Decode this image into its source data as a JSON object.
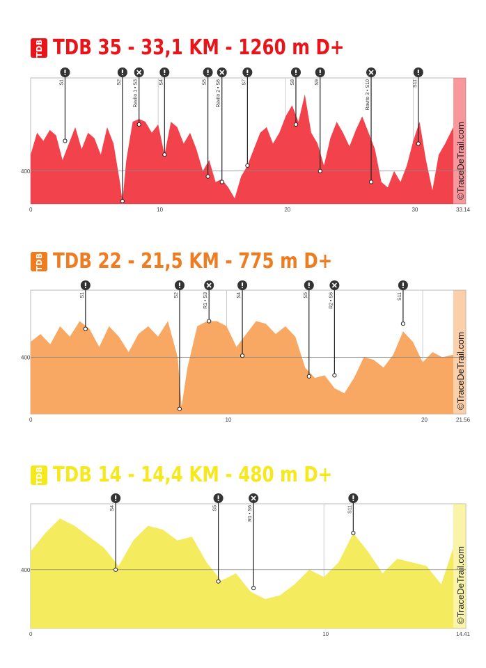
{
  "charts": [
    {
      "title": "TDB 35 - 33,1 KM - 1260 m D+",
      "badge": "TDB",
      "color": "#e8141a",
      "fill": "#f2434c",
      "watermark": "©TraceDeTrail.com",
      "axis_y_label": "400",
      "end_label": "33.14",
      "x_ticks": [
        "0",
        "10",
        "20",
        "30"
      ],
      "markers": [
        {
          "label": "S1",
          "icon": "exclamation-icon"
        },
        {
          "label": "S2",
          "icon": "exclamation-icon"
        },
        {
          "label": "Ravito 1 • S3",
          "icon": "utensils-icon"
        },
        {
          "label": "S4",
          "icon": "exclamation-icon"
        },
        {
          "label": "S5",
          "icon": "exclamation-icon"
        },
        {
          "label": "Ravito 2 • S6",
          "icon": "utensils-icon"
        },
        {
          "label": "S7",
          "icon": "exclamation-icon"
        },
        {
          "label": "S8",
          "icon": "exclamation-icon"
        },
        {
          "label": "S9",
          "icon": "exclamation-icon"
        },
        {
          "label": "Ravito 3 • S10",
          "icon": "utensils-icon"
        },
        {
          "label": "S11",
          "icon": "exclamation-icon"
        }
      ]
    },
    {
      "title": "TDB 22 - 21,5 KM - 775 m D+",
      "badge": "TDB",
      "color": "#ee7d22",
      "fill": "#f8a862",
      "watermark": "©TraceDeTrail.com",
      "axis_y_label": "400",
      "end_label": "21.56",
      "x_ticks": [
        "0",
        "10",
        "20"
      ],
      "markers": [
        {
          "label": "S1",
          "icon": "exclamation-icon"
        },
        {
          "label": "S2",
          "icon": "exclamation-icon"
        },
        {
          "label": "R1 • S3",
          "icon": "utensils-icon"
        },
        {
          "label": "S4",
          "icon": "exclamation-icon"
        },
        {
          "label": "S5",
          "icon": "exclamation-icon"
        },
        {
          "label": "R2 • S6",
          "icon": "utensils-icon"
        },
        {
          "label": "S11",
          "icon": "exclamation-icon"
        }
      ]
    },
    {
      "title": "TDB 14 - 14,4 KM - 480 m D+",
      "badge": "TDB",
      "color": "#f5e81c",
      "fill": "#f4eb5e",
      "watermark": "©TraceDeTrail.com",
      "axis_y_label": "400",
      "end_label": "14.41",
      "x_ticks": [
        "0",
        "10"
      ],
      "markers": [
        {
          "label": "S4",
          "icon": "exclamation-icon"
        },
        {
          "label": "S5",
          "icon": "exclamation-icon"
        },
        {
          "label": "R1 • S6",
          "icon": "utensils-icon"
        },
        {
          "label": "S11",
          "icon": "exclamation-icon"
        }
      ]
    }
  ],
  "chart_data": [
    {
      "type": "area",
      "title": "TDB 35 - 33,1 KM - 1260 m D+",
      "xlim": [
        0,
        33.14
      ],
      "x_unit": "km",
      "y_reference": 400,
      "markers_km": [
        2.7,
        7.2,
        8.5,
        10.5,
        13.9,
        15.0,
        17.0,
        20.8,
        22.7,
        26.7,
        30.4
      ],
      "profile": {
        "x": [
          0,
          0.5,
          1,
          1.5,
          2,
          2.5,
          3,
          3.5,
          4,
          4.5,
          5,
          5.5,
          6,
          6.5,
          7,
          7.2,
          7.5,
          8,
          8.5,
          9,
          9.5,
          10,
          10.5,
          11,
          11.5,
          12,
          12.5,
          13,
          13.5,
          14,
          14.5,
          15,
          15.5,
          16,
          16.5,
          17,
          17.5,
          18,
          18.5,
          19,
          19.5,
          20,
          20.5,
          21,
          21.5,
          22,
          22.5,
          23,
          23.5,
          24,
          24.5,
          25,
          25.5,
          26,
          26.5,
          27,
          27.5,
          28,
          28.5,
          29,
          29.5,
          30,
          30.5,
          31,
          31.5,
          32,
          32.5,
          33.14
        ],
        "y": [
          430,
          470,
          455,
          475,
          465,
          420,
          450,
          480,
          440,
          470,
          460,
          430,
          480,
          450,
          380,
          345,
          420,
          490,
          495,
          490,
          470,
          485,
          430,
          490,
          480,
          450,
          470,
          440,
          400,
          420,
          380,
          385,
          370,
          350,
          390,
          410,
          440,
          470,
          480,
          450,
          470,
          500,
          520,
          490,
          540,
          470,
          450,
          410,
          460,
          490,
          470,
          445,
          475,
          500,
          470,
          440,
          380,
          370,
          400,
          380,
          410,
          455,
          490,
          420,
          365,
          430,
          450,
          480
        ]
      },
      "marker_elevations": [
        455,
        345,
        485,
        430,
        390,
        380,
        410,
        485,
        400,
        380,
        450
      ]
    },
    {
      "type": "area",
      "title": "TDB 22 - 21,5 KM - 775 m D+",
      "xlim": [
        0,
        21.56
      ],
      "x_unit": "km",
      "y_reference": 400,
      "markers_km": [
        2.8,
        7.6,
        9.1,
        10.8,
        14.2,
        15.5,
        19.0
      ],
      "profile": {
        "x": [
          0,
          0.5,
          1,
          1.5,
          2,
          2.5,
          3,
          3.5,
          4,
          4.5,
          5,
          5.5,
          6,
          6.5,
          7,
          7.5,
          7.7,
          8,
          8.5,
          9,
          9.5,
          10,
          10.5,
          11,
          11.5,
          12,
          12.5,
          13,
          13.5,
          14,
          14.5,
          15,
          15.5,
          16,
          16.5,
          17,
          17.5,
          18,
          18.5,
          19,
          19.5,
          20,
          20.5,
          21,
          21.56
        ],
        "y": [
          430,
          445,
          425,
          460,
          440,
          470,
          455,
          420,
          460,
          440,
          410,
          445,
          460,
          440,
          470,
          400,
          305,
          380,
          460,
          470,
          470,
          460,
          420,
          445,
          470,
          465,
          445,
          460,
          440,
          380,
          360,
          365,
          340,
          330,
          360,
          400,
          395,
          380,
          405,
          450,
          430,
          390,
          410,
          400,
          405
        ]
      },
      "marker_elevations": [
        455,
        300,
        470,
        403,
        363,
        365,
        465
      ]
    },
    {
      "type": "area",
      "title": "TDB 14 - 14,4 KM - 480 m D+",
      "xlim": [
        0,
        14.41
      ],
      "x_unit": "km",
      "y_reference": 400,
      "markers_km": [
        2.9,
        6.4,
        7.6,
        11.0
      ],
      "profile": {
        "x": [
          0,
          0.5,
          1,
          1.5,
          2,
          2.5,
          3,
          3.5,
          4,
          4.5,
          5,
          5.5,
          6,
          6.5,
          7,
          7.5,
          8,
          8.5,
          9,
          9.5,
          10,
          10.5,
          11,
          11.5,
          12,
          12.5,
          13,
          13.5,
          14,
          14.41
        ],
        "y": [
          425,
          450,
          470,
          460,
          445,
          430,
          405,
          440,
          460,
          455,
          440,
          445,
          410,
          385,
          395,
          370,
          360,
          365,
          380,
          400,
          390,
          410,
          450,
          425,
          395,
          415,
          410,
          405,
          380,
          430
        ]
      },
      "marker_elevations": [
        400,
        384,
        375,
        450
      ]
    }
  ]
}
